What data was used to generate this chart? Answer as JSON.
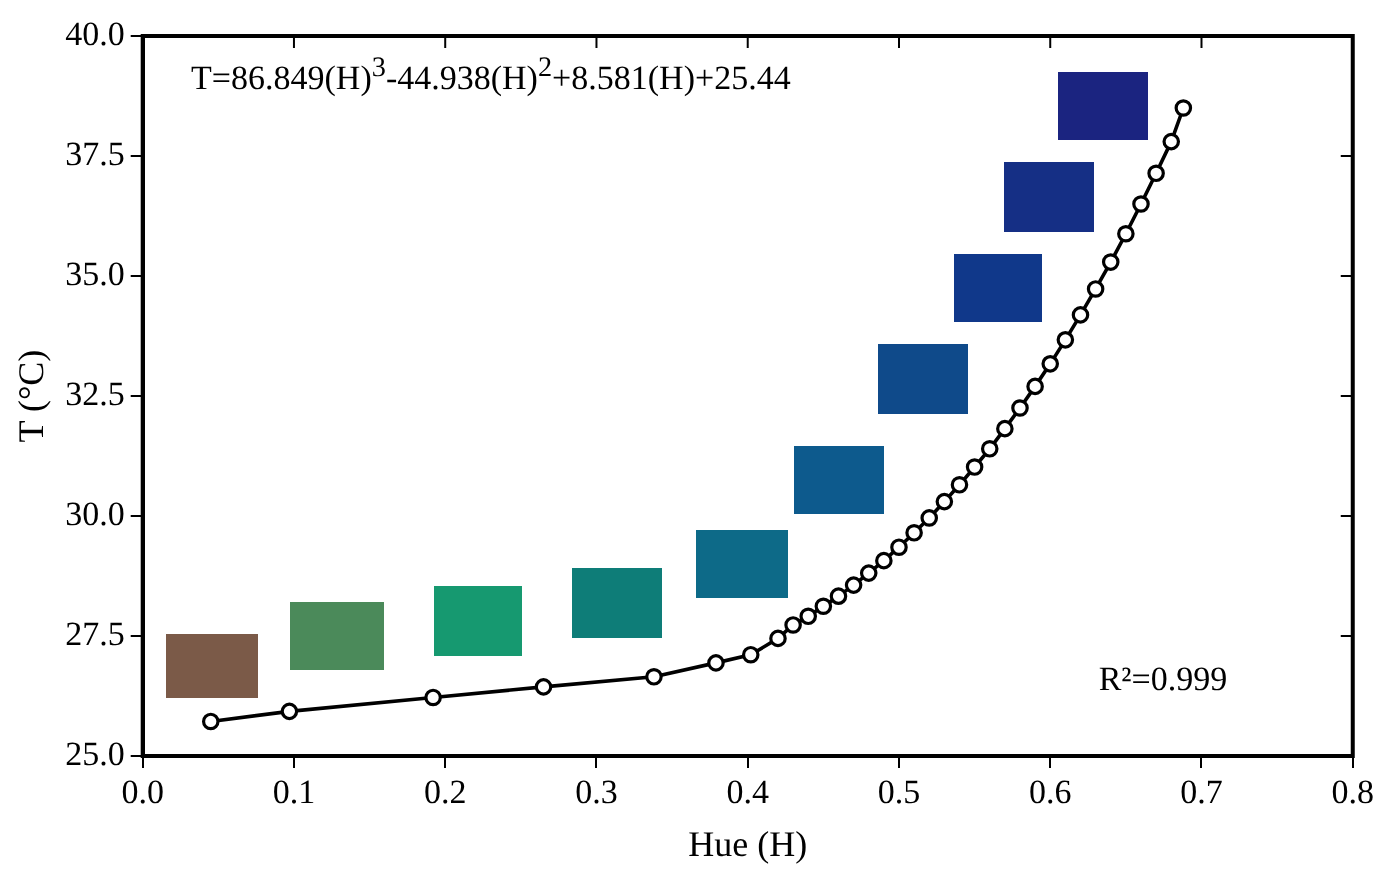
{
  "chart_data": {
    "type": "line",
    "xlabel": "Hue (H)",
    "ylabel": "T (°C)",
    "x": [
      0.045,
      0.097,
      0.192,
      0.265,
      0.338,
      0.379,
      0.402,
      0.42,
      0.43,
      0.44,
      0.45,
      0.46,
      0.47,
      0.48,
      0.49,
      0.5,
      0.51,
      0.52,
      0.53,
      0.54,
      0.55,
      0.56,
      0.57,
      0.58,
      0.59,
      0.6,
      0.61,
      0.62,
      0.63,
      0.64,
      0.65,
      0.66,
      0.67,
      0.68,
      0.688
    ],
    "series": [
      {
        "color": "#000000",
        "values": [
          25.72,
          25.93,
          26.22,
          26.44,
          26.65,
          26.94,
          27.11,
          27.45,
          27.73,
          27.91,
          28.12,
          28.33,
          28.56,
          28.81,
          29.07,
          29.35,
          29.65,
          29.96,
          30.3,
          30.65,
          31.02,
          31.4,
          31.82,
          32.25,
          32.7,
          33.17,
          33.67,
          34.19,
          34.73,
          35.29,
          35.88,
          36.5,
          37.14,
          37.8,
          38.5
        ]
      }
    ],
    "xlim": [
      0,
      0.8
    ],
    "xticks": [
      {
        "value": 0,
        "label": "0.0"
      },
      {
        "value": 0.1,
        "label": "0.1"
      },
      {
        "value": 0.2,
        "label": "0.2"
      },
      {
        "value": 0.3,
        "label": "0.3"
      },
      {
        "value": 0.4,
        "label": "0.4"
      },
      {
        "value": 0.5,
        "label": "0.5"
      },
      {
        "value": 0.6,
        "label": "0.6"
      },
      {
        "value": 0.7,
        "label": "0.7"
      },
      {
        "value": 0.8,
        "label": "0.8"
      }
    ],
    "ylim": [
      25,
      40
    ],
    "yticks": [
      {
        "value": 25,
        "label": "25.0"
      },
      27.5,
      {
        "value": 30,
        "label": "30.0"
      },
      32.5,
      {
        "value": 35,
        "label": "35.0"
      },
      37.5,
      {
        "value": 40,
        "label": "40.0"
      }
    ],
    "annotations": [
      "T=86.849(H)$^{3}$-44.938(H)$^{2}$+8.581(H)+25.44",
      "R²=0.999"
    ],
    "grid": false,
    "legend": false,
    "marker": "circle",
    "line_style": "solid"
  }
}
